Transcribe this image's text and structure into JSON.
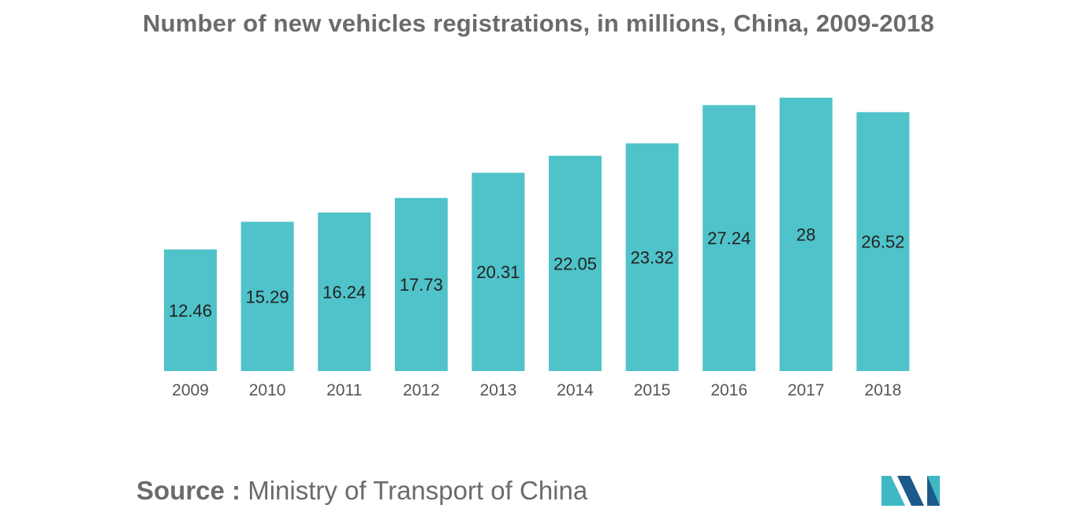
{
  "source": {
    "label": "Source :",
    "text": "Ministry of Transport of China"
  },
  "colors": {
    "bar": "#4fc3c9",
    "title": "#6b6b6b",
    "label": "#222222",
    "tick": "#555555",
    "logo_dark": "#1b5a8a",
    "logo_light": "#3fb8c4"
  },
  "logo": {
    "icon": "mordor-intelligence-logo"
  },
  "chart_data": {
    "type": "bar",
    "title": "Number of new vehicles registrations, in millions, China, 2009-2018",
    "xlabel": "",
    "ylabel": "",
    "categories": [
      "2009",
      "2010",
      "2011",
      "2012",
      "2013",
      "2014",
      "2015",
      "2016",
      "2017",
      "2018"
    ],
    "values": [
      12.46,
      15.29,
      16.24,
      17.73,
      20.31,
      22.05,
      23.32,
      27.24,
      28,
      26.52
    ],
    "data_labels": [
      "12.46",
      "15.29",
      "16.24",
      "17.73",
      "20.31",
      "22.05",
      "23.32",
      "27.24",
      "28",
      "26.52"
    ],
    "ylim": [
      0,
      28
    ],
    "grid": false,
    "legend": "none"
  }
}
